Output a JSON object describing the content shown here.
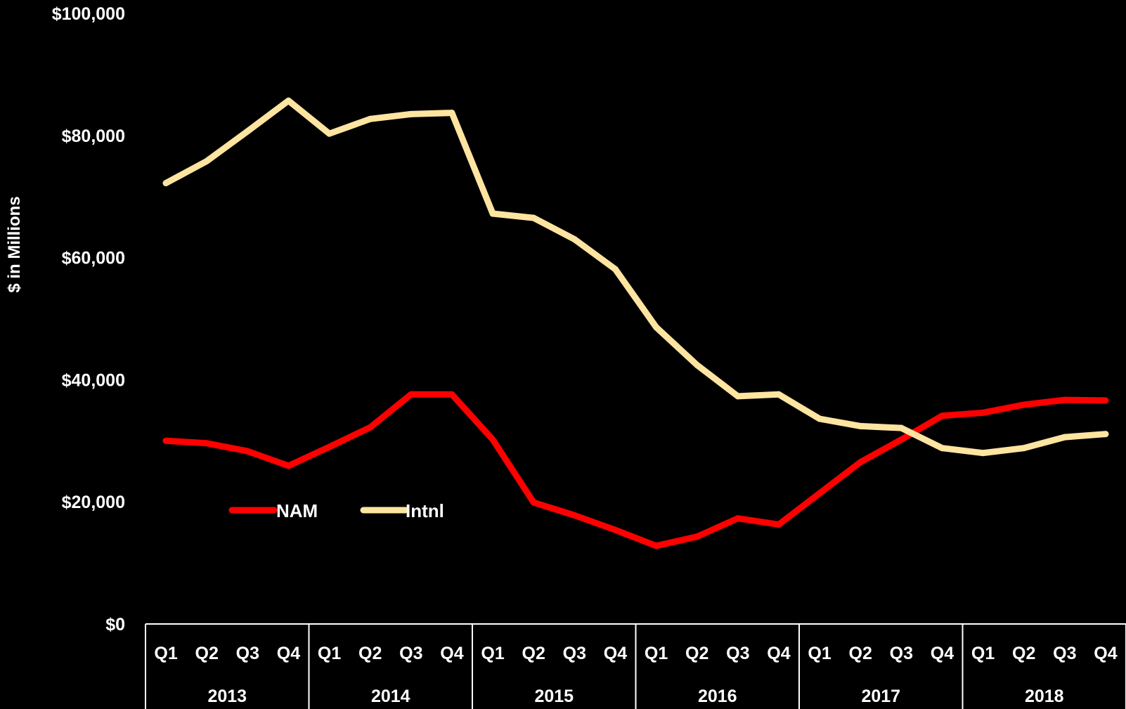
{
  "chart_data": {
    "type": "line",
    "ylabel": "$ in Millions",
    "ylim": [
      0,
      100000
    ],
    "yticks": [
      "$0",
      "$20,000",
      "$40,000",
      "$60,000",
      "$80,000",
      "$100,000"
    ],
    "ytick_values": [
      0,
      20000,
      40000,
      60000,
      80000,
      100000
    ],
    "quarters": [
      "Q1",
      "Q2",
      "Q3",
      "Q4",
      "Q1",
      "Q2",
      "Q3",
      "Q4",
      "Q1",
      "Q2",
      "Q3",
      "Q4",
      "Q1",
      "Q2",
      "Q3",
      "Q4",
      "Q1",
      "Q2",
      "Q3",
      "Q4",
      "Q1",
      "Q2",
      "Q3",
      "Q4"
    ],
    "years": [
      "2013",
      "2014",
      "2015",
      "2016",
      "2017",
      "2018"
    ],
    "grid": false,
    "legend_position": "lower-left inside plot",
    "series": [
      {
        "name": "NAM",
        "color": "#ff0000",
        "values": [
          30000,
          29600,
          28300,
          25900,
          29000,
          32200,
          37600,
          37600,
          30200,
          19900,
          17800,
          15400,
          12800,
          14300,
          17300,
          16300,
          21400,
          26500,
          30200,
          34100,
          34600,
          35900,
          36700,
          36600
        ]
      },
      {
        "name": "Intnl",
        "color": "#fde4a0",
        "values": [
          72200,
          75800,
          80700,
          85700,
          80300,
          82700,
          83500,
          83700,
          67200,
          66500,
          63000,
          58100,
          48600,
          42400,
          37300,
          37600,
          33600,
          32400,
          32100,
          28800,
          28000,
          28800,
          30600,
          31100
        ]
      }
    ]
  }
}
